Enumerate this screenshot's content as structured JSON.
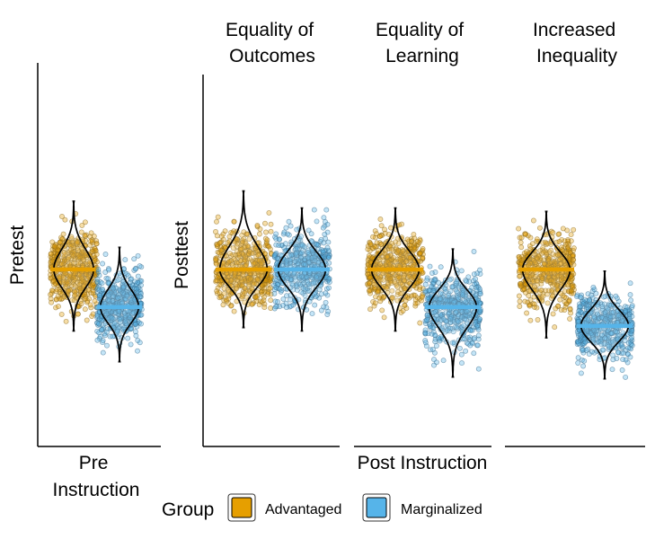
{
  "colors": {
    "advantaged": "#e69f00",
    "marginalized": "#56b4e9",
    "advantaged_point_stroke": "#8a6b22",
    "marginalized_point_stroke": "#3d6f8f"
  },
  "legend": {
    "title": "Group",
    "items": [
      {
        "label": "Advantaged",
        "color": "#e69f00"
      },
      {
        "label": "Marginalized",
        "color": "#56b4e9"
      }
    ]
  },
  "chart_data": {
    "type": "violin",
    "x_group_labels": {
      "pre": "Pre\nInstruction",
      "post": "Post Instruction"
    },
    "panels": [
      {
        "id": "pre",
        "title": "",
        "ylabel": "Pretest",
        "series": [
          {
            "name": "Advantaged",
            "mean": 0.0,
            "min": -3.6,
            "max": 4.0
          },
          {
            "name": "Marginalized",
            "mean": -2.2,
            "min": -5.4,
            "max": 1.3
          }
        ]
      },
      {
        "id": "equality-outcomes",
        "title": "Equality of\nOutcomes",
        "ylabel": "Posttest",
        "series": [
          {
            "name": "Advantaged",
            "mean": 0.0,
            "min": -3.4,
            "max": 4.6
          },
          {
            "name": "Marginalized",
            "mean": 0.0,
            "min": -3.6,
            "max": 3.6
          }
        ]
      },
      {
        "id": "equality-learning",
        "title": "Equality of\nLearning",
        "ylabel": "",
        "series": [
          {
            "name": "Advantaged",
            "mean": 0.0,
            "min": -3.6,
            "max": 3.6
          },
          {
            "name": "Marginalized",
            "mean": -2.2,
            "min": -6.3,
            "max": 1.2
          }
        ]
      },
      {
        "id": "increased-inequality",
        "title": "Increased\nInequality",
        "ylabel": "",
        "series": [
          {
            "name": "Advantaged",
            "mean": 0.0,
            "min": -4.0,
            "max": 3.4
          },
          {
            "name": "Marginalized",
            "mean": -3.3,
            "min": -6.4,
            "max": -0.1
          }
        ]
      }
    ],
    "ylim": [
      -7,
      5.5
    ],
    "axis_ticks": "none",
    "grid": false,
    "legend_position": "bottom"
  }
}
